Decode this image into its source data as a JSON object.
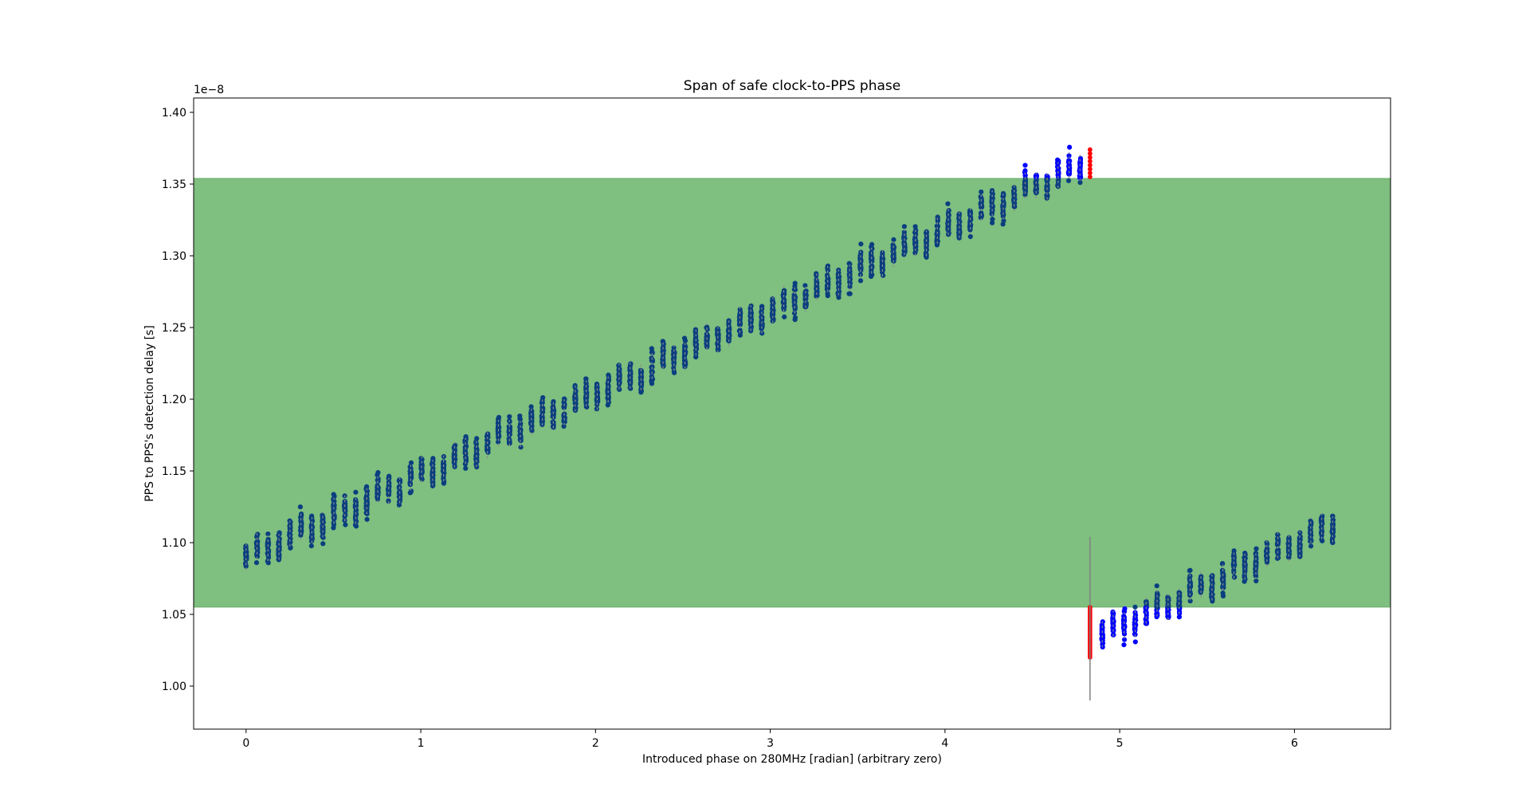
{
  "chart_data": {
    "type": "scatter",
    "title": "Span of safe clock-to-PPS phase",
    "xlabel": "Introduced phase on 280MHz [radian] (arbitrary zero)",
    "ylabel": "PPS to PPS's detection delay [s]",
    "y_offset_text": "1e−8",
    "xlim": [
      -0.3,
      6.55
    ],
    "ylim": [
      0.97,
      1.41
    ],
    "x_ticks": [
      0,
      1,
      2,
      3,
      4,
      5,
      6
    ],
    "x_tick_labels": [
      "0",
      "1",
      "2",
      "3",
      "4",
      "5",
      "6"
    ],
    "y_ticks": [
      1.0,
      1.05,
      1.1,
      1.15,
      1.2,
      1.25,
      1.3,
      1.35,
      1.4
    ],
    "y_tick_labels": [
      "1.00",
      "1.05",
      "1.10",
      "1.15",
      "1.20",
      "1.25",
      "1.30",
      "1.35",
      "1.40"
    ],
    "grid": false,
    "safe_band": {
      "y_min": 1.055,
      "y_max": 1.354,
      "color": "#7fbf7f"
    },
    "colors": {
      "inside_points": "#0a3f7f",
      "outside_points": "#0000ff",
      "discarded_points": "#ff0000",
      "median_marker": "#8c8c8c",
      "divider_line": "#808080"
    },
    "divider": {
      "x": 4.83,
      "y_min": 0.99,
      "y_max": 1.104
    },
    "series": [
      {
        "segment": "rising",
        "x_start": 0.0,
        "x_end": 4.77,
        "step": 0.0628,
        "y_start": 1.09,
        "y_end": 1.363,
        "spread": 0.03
      },
      {
        "segment": "discarded_top",
        "x": [
          4.83
        ],
        "y_min": 1.355,
        "y_max": 1.374
      },
      {
        "segment": "discarded_bottom",
        "x": [
          4.83
        ],
        "y_min": 1.02,
        "y_max": 1.055
      },
      {
        "segment": "falling",
        "x_start": 4.9,
        "x_end": 6.22,
        "step": 0.0628,
        "y_start": 1.036,
        "y_end": 1.113,
        "spread": 0.03
      }
    ]
  }
}
